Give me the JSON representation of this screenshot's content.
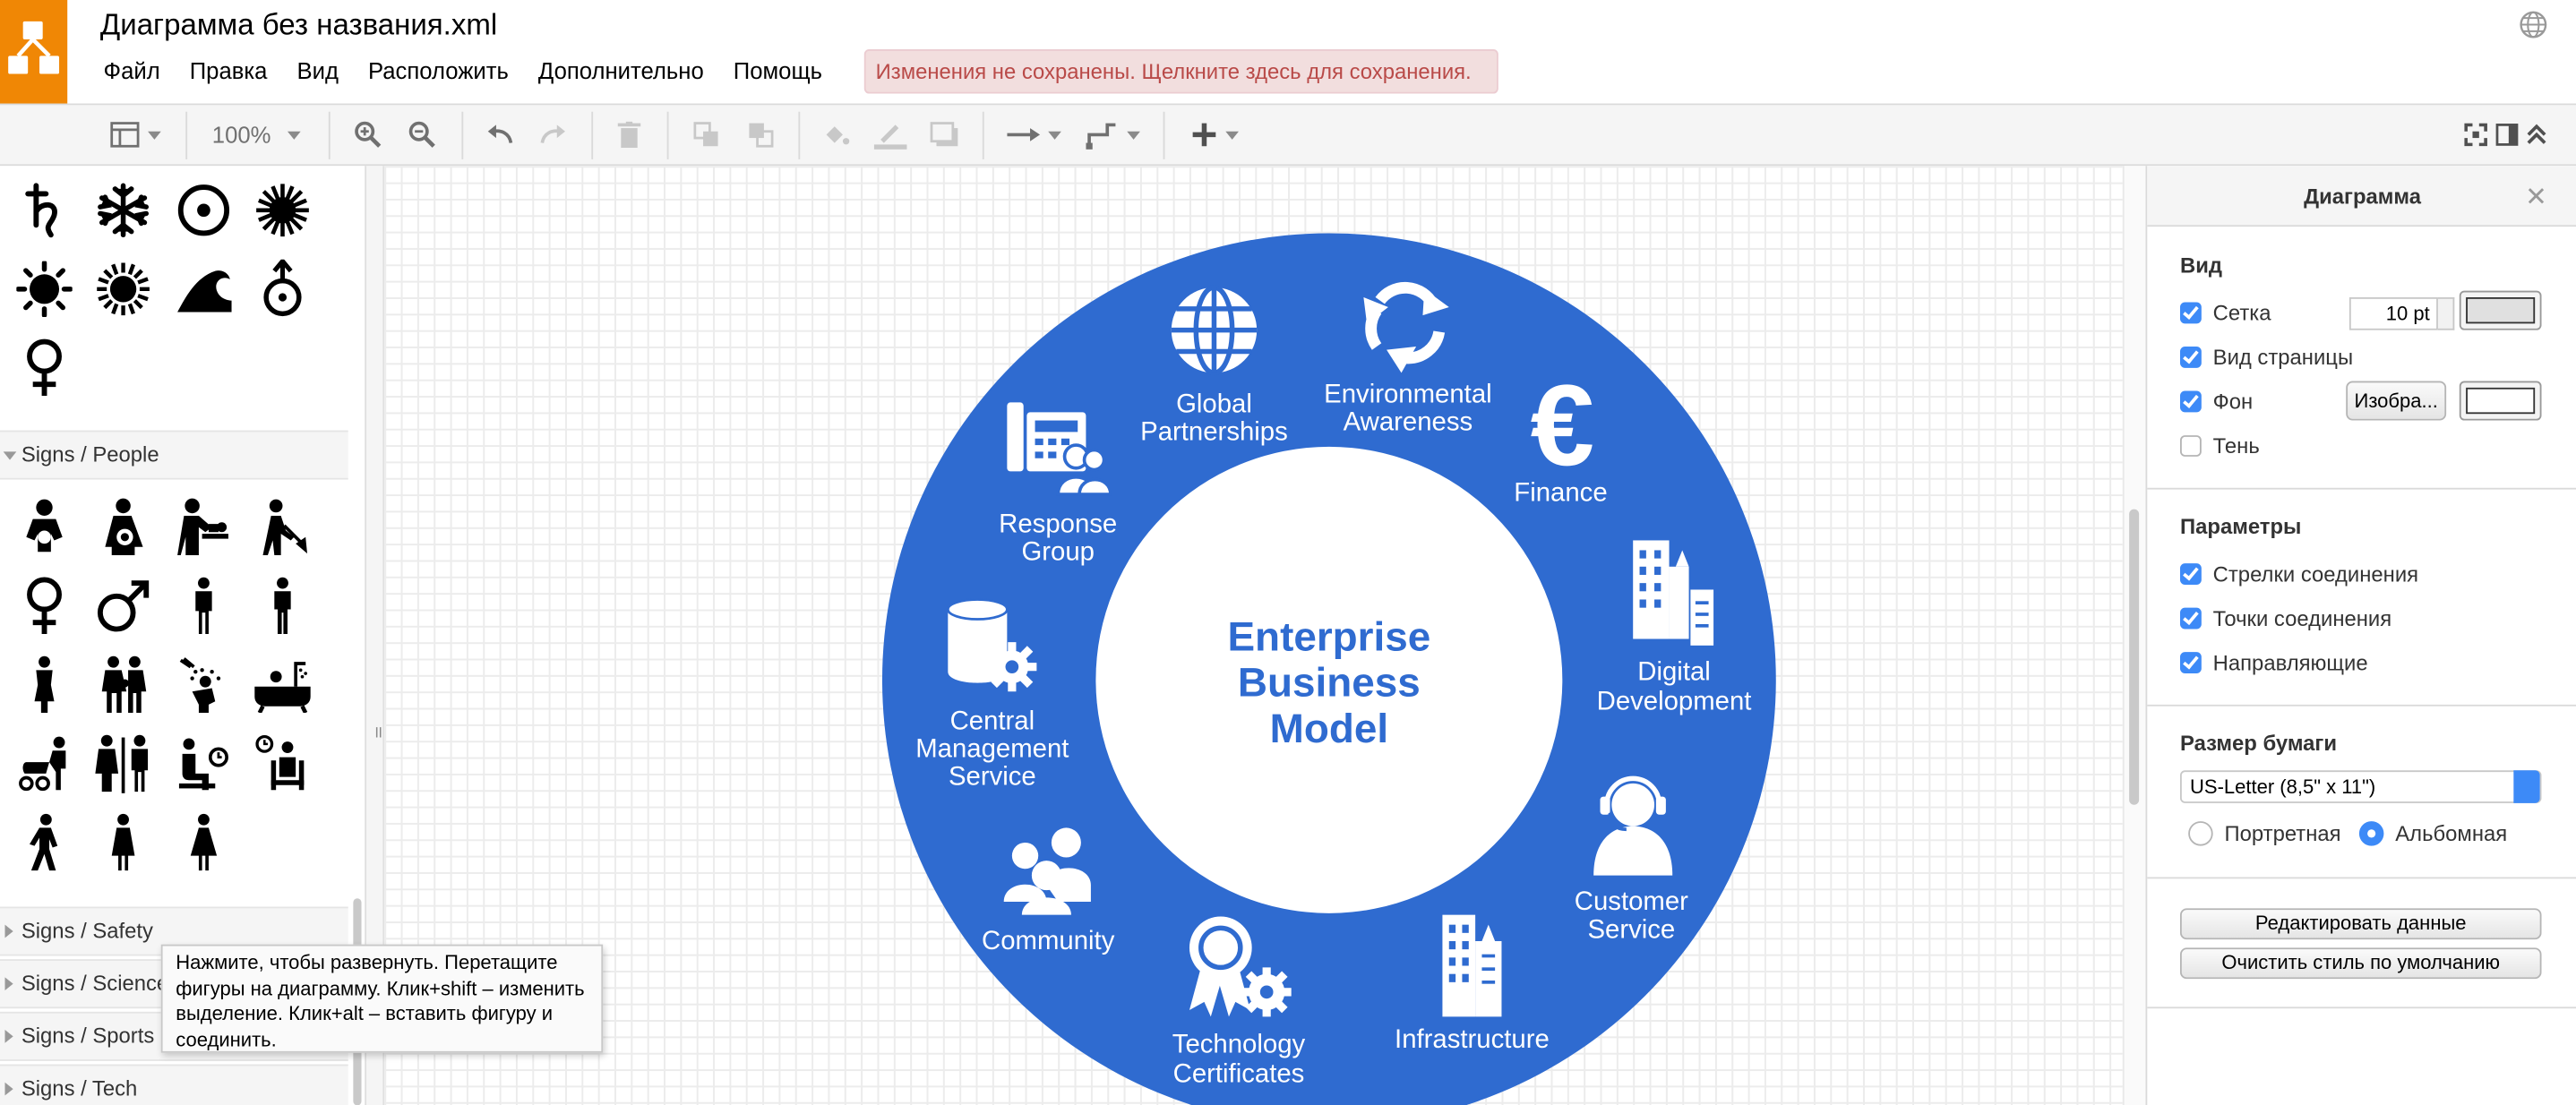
{
  "app": {
    "title": "Диаграмма без названия.xml",
    "unsaved_notice": "Изменения не сохранены. Щелкните здесь для сохранения.",
    "accent_color": "#f08705"
  },
  "menu": [
    "Файл",
    "Правка",
    "Вид",
    "Расположить",
    "Дополнительно",
    "Помощь"
  ],
  "toolbar": {
    "zoom": "100%",
    "icons": [
      "format-panel-icon",
      "zoom-in-icon",
      "zoom-out-icon",
      "undo-icon",
      "redo-icon",
      "delete-icon",
      "to-front-icon",
      "to-back-icon",
      "fill-color-icon",
      "line-color-icon",
      "shadow-icon",
      "connection-icon",
      "waypoints-icon",
      "insert-icon",
      "fullscreen-icon",
      "toggle-panel-icon",
      "collapse-icon"
    ]
  },
  "sidebar": {
    "sections": {
      "people": "Signs / People",
      "safety": "Signs / Safety",
      "science": "Signs / Science",
      "sports": "Signs / Sports",
      "tech": "Signs / Tech"
    }
  },
  "tooltip": {
    "text": "Нажмите, чтобы развернуть. Перетащите фигуры на диаграмму. Клик+shift – изменить выделение. Клик+alt – вставить фигуру и соединить."
  },
  "diagram": {
    "ring_color": "#2f6bd0",
    "center_label": [
      "Enterprise",
      "Business",
      "Model"
    ],
    "segments": [
      {
        "icon": "globe-icon",
        "label": [
          "Global",
          "Partnerships"
        ]
      },
      {
        "icon": "recycle-icon",
        "label": [
          "Environmental",
          "Awareness"
        ]
      },
      {
        "icon": "euro-icon",
        "label": [
          "Finance"
        ]
      },
      {
        "icon": "buildings-icon",
        "label": [
          "Digital",
          "Development"
        ]
      },
      {
        "icon": "headset-icon",
        "label": [
          "Customer",
          "Service"
        ]
      },
      {
        "icon": "skyscraper-icon",
        "label": [
          "Infrastructure"
        ]
      },
      {
        "icon": "certificate-icon",
        "label": [
          "Technology",
          "Certificates"
        ]
      },
      {
        "icon": "people-icon",
        "label": [
          "Community"
        ]
      },
      {
        "icon": "database-gear-icon",
        "label": [
          "Central",
          "Management",
          "Service"
        ]
      },
      {
        "icon": "phone-group-icon",
        "label": [
          "Response",
          "Group"
        ]
      }
    ]
  },
  "format_panel": {
    "title": "Диаграмма",
    "view": {
      "heading": "Вид",
      "grid": "Сетка",
      "grid_size": "10 pt",
      "page_view": "Вид страницы",
      "background": "Фон",
      "image_button": "Изобра...",
      "shadow": "Тень"
    },
    "options": {
      "heading": "Параметры",
      "connection_arrows": "Стрелки соединения",
      "connection_points": "Точки соединения",
      "guides": "Направляющие"
    },
    "paper": {
      "heading": "Размер бумаги",
      "size": "US-Letter (8,5\" x 11\")",
      "portrait": "Портретная",
      "landscape": "Альбомная"
    },
    "buttons": {
      "edit_data": "Редактировать данные",
      "clear_style": "Очистить стиль по умолчанию"
    }
  }
}
